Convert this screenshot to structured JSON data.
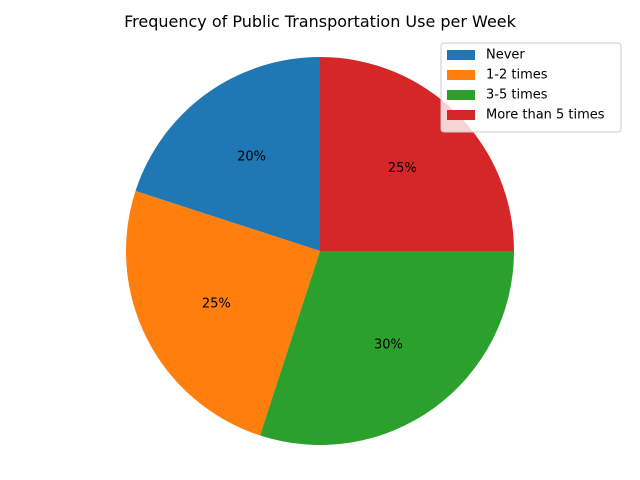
{
  "chart_data": {
    "type": "pie",
    "title": "Frequency of Public Transportation Use per Week",
    "categories": [
      "Never",
      "1-2 times",
      "3-5 times",
      "More than 5 times"
    ],
    "values": [
      20,
      25,
      30,
      25
    ],
    "value_labels": [
      "20%",
      "25%",
      "30%",
      "25%"
    ],
    "colors": [
      "#1f77b4",
      "#ff7f0e",
      "#2ca02c",
      "#d62728"
    ],
    "start_angle_deg": 90,
    "direction": "counterclockwise",
    "legend_position": "top-right"
  }
}
